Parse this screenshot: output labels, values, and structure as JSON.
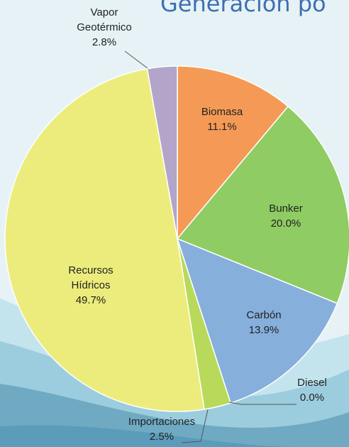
{
  "page_title": "Generación po",
  "chart_data": {
    "type": "pie",
    "title": "Generación po",
    "slices": [
      {
        "label": [
          "Biomasa"
        ],
        "percent": "11.1%",
        "value": 11.1,
        "color": "#f59a56"
      },
      {
        "label": [
          "Bunker"
        ],
        "percent": "20.0%",
        "value": 20.0,
        "color": "#8fcc63"
      },
      {
        "label": [
          "Carbón"
        ],
        "percent": "13.9%",
        "value": 13.9,
        "color": "#86afdc"
      },
      {
        "label": [
          "Diesel"
        ],
        "percent": "0.0%",
        "value": 0.0,
        "color": "#c9c9c9"
      },
      {
        "label": [
          "Importaciones"
        ],
        "percent": "2.5%",
        "value": 2.5,
        "color": "#b9d95a"
      },
      {
        "label": [
          "Recursos",
          "Hídricos"
        ],
        "percent": "49.7%",
        "value": 49.7,
        "color": "#ecec7c"
      },
      {
        "label": [
          "Vapor",
          "Geotérmico"
        ],
        "percent": "2.8%",
        "value": 2.8,
        "color": "#b3a5c9"
      }
    ],
    "legend": "none"
  }
}
